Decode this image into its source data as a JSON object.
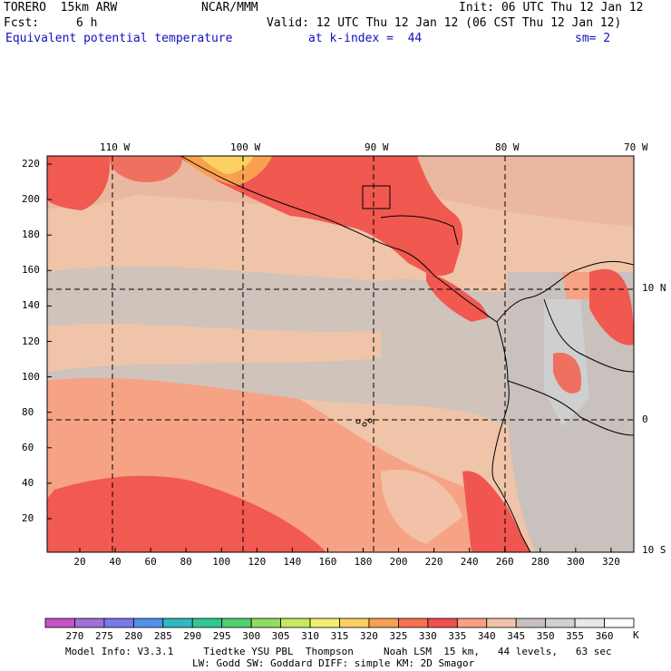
{
  "header": {
    "model": "TORERO  15km ARW",
    "center": "NCAR/MMM",
    "init": "Init: 06 UTC Thu 12 Jan 12",
    "fcst_label": "Fcst:",
    "fcst_value": "6 h",
    "valid": "Valid: 12 UTC Thu 12 Jan 12 (06 CST Thu 12 Jan 12)",
    "field": "Equivalent potential temperature",
    "level": "at k-index =  44",
    "smooth": "sm= 2"
  },
  "map": {
    "lon_labels": [
      "110 W",
      "100 W",
      "90 W",
      "80 W",
      "70 W"
    ],
    "lat_labels": [
      "10 N",
      "0",
      "10 S"
    ],
    "y_ticks": [
      "220",
      "200",
      "180",
      "160",
      "140",
      "120",
      "100",
      "80",
      "60",
      "40",
      "20"
    ],
    "x_ticks": [
      "20",
      "40",
      "60",
      "80",
      "100",
      "120",
      "140",
      "160",
      "180",
      "200",
      "220",
      "240",
      "260",
      "280",
      "300",
      "320"
    ]
  },
  "colorbar": {
    "levels": [
      "270",
      "275",
      "280",
      "285",
      "290",
      "295",
      "300",
      "305",
      "310",
      "315",
      "320",
      "325",
      "330",
      "335",
      "340",
      "345",
      "350",
      "355",
      "360"
    ],
    "unit": "K",
    "colors": [
      "#c850c8",
      "#a070d8",
      "#7878e8",
      "#5090e8",
      "#30b8c0",
      "#30c890",
      "#50d070",
      "#90dc60",
      "#c8e860",
      "#f0f070",
      "#fad060",
      "#f8a050",
      "#f87050",
      "#f05050",
      "#f8a080",
      "#f0c4a8",
      "#c8c0bc",
      "#d0d0d0",
      "#e8e8e8",
      "#ffffff"
    ]
  },
  "footer": {
    "line1": "Model Info: V3.3.1     Tiedtke YSU PBL  Thompson     Noah LSM  15 km,   44 levels,   63 sec",
    "line2": "LW: Godd SW: Goddard DIFF: simple KM: 2D Smagor"
  }
}
